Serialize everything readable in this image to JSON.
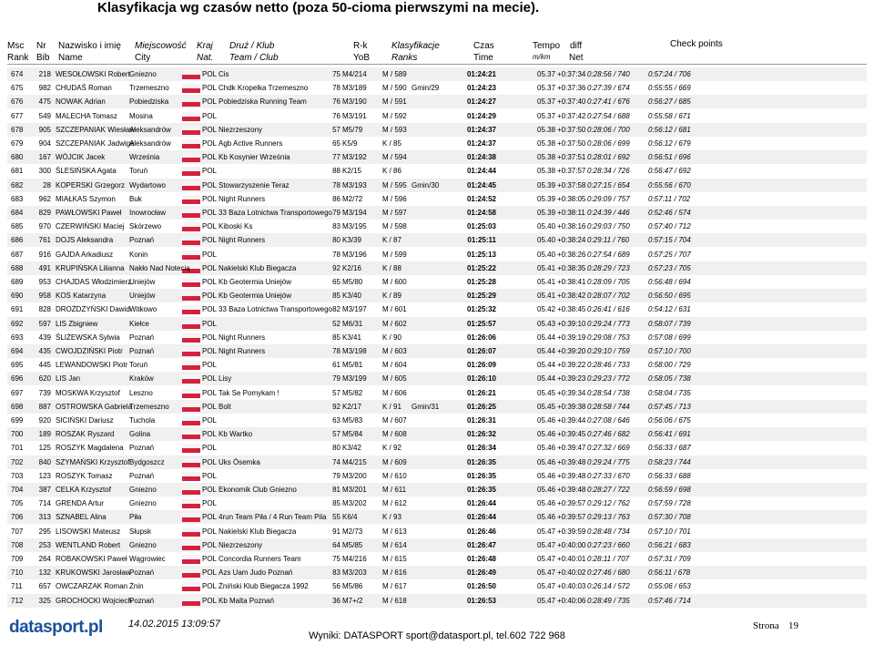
{
  "title": "Klasyfikacja wg czasów netto (poza 50-cioma pierwszymi na mecie).",
  "header": {
    "rank": [
      "Msc",
      "Rank"
    ],
    "bib": [
      "Nr",
      "Bib"
    ],
    "name": [
      "Nazwisko i imię",
      "Name"
    ],
    "city": [
      "Miejscowość",
      "City"
    ],
    "nat": [
      "Kraj",
      "Nat."
    ],
    "team": [
      "Druż / Klub",
      "Team / Club"
    ],
    "yob": [
      "R-k",
      "YoB"
    ],
    "ranks": [
      "Klasyfikacje",
      "Ranks"
    ],
    "time": [
      "Czas",
      "Time"
    ],
    "tempo": [
      "Tempo",
      "m/km"
    ],
    "diff": "diff",
    "net": "Net",
    "checkpoints": "Check points"
  },
  "table": {
    "rows": [
      {
        "rank": "674",
        "bib": "218",
        "name": "WESOŁOWSKI Robert",
        "city": "Gniezno",
        "nat": "POL",
        "team": "Cis",
        "yob": "75",
        "cat": "M4/214",
        "ranks": "M / 589",
        "time": "01:24:21",
        "tempo": "05.37",
        "diff": "+0:37:34",
        "net": "0:28:56 / 740",
        "cp": "0:57:24 / 706"
      },
      {
        "rank": "675",
        "bib": "982",
        "name": "CHUDAŚ Roman",
        "city": "Trzemeszno",
        "nat": "POL",
        "team": "Chdk Kropelka Trzemeszno",
        "yob": "78",
        "cat": "M3/189",
        "ranks": "M / 590",
        "gmin": "Gmin/29",
        "time": "01:24:23",
        "tempo": "05.37",
        "diff": "+0:37:36",
        "net": "0:27:39 / 674",
        "cp": "0:55:55 / 669"
      },
      {
        "rank": "676",
        "bib": "475",
        "name": "NOWAK Adrian",
        "city": "Pobiedziska",
        "nat": "POL",
        "team": "Pobiedziska Running Team",
        "yob": "76",
        "cat": "M3/190",
        "ranks": "M / 591",
        "time": "01:24:27",
        "tempo": "05.37",
        "diff": "+0:37:40",
        "net": "0:27:41 / 676",
        "cp": "0:56:27 / 685"
      },
      {
        "rank": "677",
        "bib": "549",
        "name": "MALECHA Tomasz",
        "city": "Mosina",
        "nat": "POL",
        "yob": "76",
        "cat": "M3/191",
        "ranks": "M / 592",
        "time": "01:24:29",
        "tempo": "05.37",
        "diff": "+0:37:42",
        "net": "0:27:54 / 688",
        "cp": "0:55:58 / 671"
      },
      {
        "rank": "678",
        "bib": "905",
        "name": "SZCZEPANIAK Wiesław",
        "city": "Aleksandrów",
        "nat": "POL",
        "team": "Niezrzeszony",
        "yob": "57",
        "cat": "M5/79",
        "ranks": "M / 593",
        "time": "01:24:37",
        "tempo": "05.38",
        "diff": "+0:37:50",
        "net": "0:28:06 / 700",
        "cp": "0:56:12 / 681"
      },
      {
        "rank": "679",
        "bib": "904",
        "name": "SZCZEPANIAK Jadwiga",
        "city": "Aleksandrów",
        "nat": "POL",
        "team": "Agb Active Runners",
        "yob": "65",
        "cat": "K5/9",
        "ranks": "K / 85",
        "time": "01:24:37",
        "tempo": "05.38",
        "diff": "+0:37:50",
        "net": "0:28:06 / 699",
        "cp": "0:56:12 / 679"
      },
      {
        "rank": "680",
        "bib": "167",
        "name": "WÓJCIK Jacek",
        "city": "Września",
        "nat": "POL",
        "team": "Kb Kosynier Września",
        "yob": "77",
        "cat": "M3/192",
        "ranks": "M / 594",
        "time": "01:24:38",
        "tempo": "05.38",
        "diff": "+0:37:51",
        "net": "0:28:01 / 692",
        "cp": "0:56:51 / 696"
      },
      {
        "rank": "681",
        "bib": "300",
        "name": "ŚLESIŃSKA Agata",
        "city": "Toruń",
        "nat": "POL",
        "yob": "88",
        "cat": "K2/15",
        "ranks": "K / 86",
        "time": "01:24:44",
        "tempo": "05.38",
        "diff": "+0:37:57",
        "net": "0:28:34 / 726",
        "cp": "0:56:47 / 692"
      },
      {
        "rank": "682",
        "bib": "28",
        "name": "KOPERSKI Grzegorz",
        "city": "Wydartowo",
        "nat": "POL",
        "team": "Stowarzyszenie Teraz",
        "yob": "78",
        "cat": "M3/193",
        "ranks": "M / 595",
        "gmin": "Gmin/30",
        "time": "01:24:45",
        "tempo": "05.39",
        "diff": "+0:37:58",
        "net": "0:27:15 / 654",
        "cp": "0:55:56 / 670"
      },
      {
        "rank": "683",
        "bib": "962",
        "name": "MIAŁKAS Szymon",
        "city": "Buk",
        "nat": "POL",
        "team": "Night Runners",
        "yob": "86",
        "cat": "M2/72",
        "ranks": "M / 596",
        "time": "01:24:52",
        "tempo": "05.39",
        "diff": "+0:38:05",
        "net": "0:29:09 / 757",
        "cp": "0:57:11 / 702"
      },
      {
        "rank": "684",
        "bib": "829",
        "name": "PAWŁOWSKI Paweł",
        "city": "Inowrocław",
        "nat": "POL",
        "team": "33 Baza Lotnictwa Transportowego",
        "yob": "79",
        "cat": "M3/194",
        "ranks": "M / 597",
        "time": "01:24:58",
        "tempo": "05.39",
        "diff": "+0:38:11",
        "net": "0:24:39 / 446",
        "cp": "0:52:46 / 574"
      },
      {
        "rank": "685",
        "bib": "970",
        "name": "CZERWIŃSKI Maciej",
        "city": "Skórzewo",
        "nat": "POL",
        "team": "Kiboski Ks",
        "yob": "83",
        "cat": "M3/195",
        "ranks": "M / 598",
        "time": "01:25:03",
        "tempo": "05.40",
        "diff": "+0:38:16",
        "net": "0:29:03 / 750",
        "cp": "0:57:40 / 712"
      },
      {
        "rank": "686",
        "bib": "761",
        "name": "DOJS Aleksandra",
        "city": "Poznań",
        "nat": "POL",
        "team": "Night Runners",
        "yob": "80",
        "cat": "K3/39",
        "ranks": "K / 87",
        "time": "01:25:11",
        "tempo": "05.40",
        "diff": "+0:38:24",
        "net": "0:29:11 / 760",
        "cp": "0:57:15 / 704"
      },
      {
        "rank": "687",
        "bib": "916",
        "name": "GAJDA Arkadiusz",
        "city": "Konin",
        "nat": "POL",
        "yob": "78",
        "cat": "M3/196",
        "ranks": "M / 599",
        "time": "01:25:13",
        "tempo": "05.40",
        "diff": "+0:38:26",
        "net": "0:27:54 / 689",
        "cp": "0:57:25 / 707"
      },
      {
        "rank": "688",
        "bib": "491",
        "name": "KRUPIŃSKA Lilianna",
        "city": "Nakło Nad Notecią",
        "nat": "POL",
        "team": "Nakielski Klub Biegacza",
        "yob": "92",
        "cat": "K2/16",
        "ranks": "K / 88",
        "time": "01:25:22",
        "tempo": "05.41",
        "diff": "+0:38:35",
        "net": "0:28:29 / 723",
        "cp": "0:57:23 / 705"
      },
      {
        "rank": "689",
        "bib": "953",
        "name": "CHAJDAS Włodzimierz",
        "city": "Uniejów",
        "nat": "POL",
        "team": "Kb Geotermia Uniejów",
        "yob": "65",
        "cat": "M5/80",
        "ranks": "M / 600",
        "time": "01:25:28",
        "tempo": "05.41",
        "diff": "+0:38:41",
        "net": "0:28:09 / 705",
        "cp": "0:56:48 / 694"
      },
      {
        "rank": "690",
        "bib": "958",
        "name": "KOS Katarzyna",
        "city": "Uniejów",
        "nat": "POL",
        "team": "Kb Geotermia Uniejów",
        "yob": "85",
        "cat": "K3/40",
        "ranks": "K / 89",
        "time": "01:25:29",
        "tempo": "05.41",
        "diff": "+0:38:42",
        "net": "0:28:07 / 702",
        "cp": "0:56:50 / 695"
      },
      {
        "rank": "691",
        "bib": "828",
        "name": "DROŻDŻYŃSKI Dawid",
        "city": "Witkowo",
        "nat": "POL",
        "team": "33 Baza Lotnictwa Transportowego",
        "yob": "82",
        "cat": "M3/197",
        "ranks": "M / 601",
        "time": "01:25:32",
        "tempo": "05.42",
        "diff": "+0:38:45",
        "net": "0:26:41 / 616",
        "cp": "0:54:12 / 631"
      },
      {
        "rank": "692",
        "bib": "597",
        "name": "LIS Zbigniew",
        "city": "Kiełce",
        "nat": "POL",
        "yob": "52",
        "cat": "M6/31",
        "ranks": "M / 602",
        "time": "01:25:57",
        "tempo": "05.43",
        "diff": "+0:39:10",
        "net": "0:29:24 / 773",
        "cp": "0:58:07 / 739"
      },
      {
        "rank": "693",
        "bib": "439",
        "name": "ŚLIŻEWSKA Sylwia",
        "city": "Poznań",
        "nat": "POL",
        "team": "Night Runners",
        "yob": "85",
        "cat": "K3/41",
        "ranks": "K / 90",
        "time": "01:26:06",
        "tempo": "05.44",
        "diff": "+0:39:19",
        "net": "0:29:08 / 753",
        "cp": "0:57:08 / 699"
      },
      {
        "rank": "694",
        "bib": "435",
        "name": "CWOJDZIŃSKI Piotr",
        "city": "Poznań",
        "nat": "POL",
        "team": "Night Runners",
        "yob": "78",
        "cat": "M3/198",
        "ranks": "M / 603",
        "time": "01:26:07",
        "tempo": "05.44",
        "diff": "+0:39:20",
        "net": "0:29:10 / 759",
        "cp": "0:57:10 / 700"
      },
      {
        "rank": "695",
        "bib": "445",
        "name": "LEWANDOWSKI Piotr",
        "city": "Toruń",
        "nat": "POL",
        "yob": "61",
        "cat": "M5/81",
        "ranks": "M / 604",
        "time": "01:26:09",
        "tempo": "05.44",
        "diff": "+0:39:22",
        "net": "0:28:46 / 733",
        "cp": "0:58:00 / 729"
      },
      {
        "rank": "696",
        "bib": "620",
        "name": "LIS Jan",
        "city": "Kraków",
        "nat": "POL",
        "team": "Lisy",
        "yob": "79",
        "cat": "M3/199",
        "ranks": "M / 605",
        "time": "01:26:10",
        "tempo": "05.44",
        "diff": "+0:39:23",
        "net": "0:29:23 / 772",
        "cp": "0:58:05 / 738"
      },
      {
        "rank": "697",
        "bib": "739",
        "name": "MOSKWA Krzysztof",
        "city": "Leszno",
        "nat": "POL",
        "team": "Tak Se Pomykam !",
        "yob": "57",
        "cat": "M5/82",
        "ranks": "M / 606",
        "time": "01:26:21",
        "tempo": "05.45",
        "diff": "+0:39:34",
        "net": "0:28:54 / 738",
        "cp": "0:58:04 / 735"
      },
      {
        "rank": "698",
        "bib": "887",
        "name": "OSTROWSKA Gabriela",
        "city": "Trzemeszno",
        "nat": "POL",
        "team": "Bolt",
        "yob": "92",
        "cat": "K2/17",
        "ranks": "K / 91",
        "gmin": "Gmin/31",
        "time": "01:26:25",
        "tempo": "05.45",
        "diff": "+0:39:38",
        "net": "0:28:58 / 744",
        "cp": "0:57:45 / 713"
      },
      {
        "rank": "699",
        "bib": "920",
        "name": "SICIŃSKI Dariusz",
        "city": "Tuchola",
        "nat": "POL",
        "yob": "63",
        "cat": "M5/83",
        "ranks": "M / 607",
        "time": "01:26:31",
        "tempo": "05.46",
        "diff": "+0:39:44",
        "net": "0:27:08 / 646",
        "cp": "0:56:06 / 675"
      },
      {
        "rank": "700",
        "bib": "189",
        "name": "ROSZAK Ryszard",
        "city": "Golina",
        "nat": "POL",
        "team": "Kb Wartko",
        "yob": "57",
        "cat": "M5/84",
        "ranks": "M / 608",
        "time": "01:26:32",
        "tempo": "05.46",
        "diff": "+0:39:45",
        "net": "0:27:46 / 682",
        "cp": "0:56:41 / 691"
      },
      {
        "rank": "701",
        "bib": "125",
        "name": "ROSZYK Magdalena",
        "city": "Poznań",
        "nat": "POL",
        "yob": "80",
        "cat": "K3/42",
        "ranks": "K / 92",
        "time": "01:26:34",
        "tempo": "05.46",
        "diff": "+0:39:47",
        "net": "0:27:32 / 669",
        "cp": "0:56:33 / 687"
      },
      {
        "rank": "702",
        "bib": "840",
        "name": "SZYMAŃSKI Krzysztof",
        "city": "Bydgoszcz",
        "nat": "POL",
        "team": "Uks Ósemka",
        "yob": "74",
        "cat": "M4/215",
        "ranks": "M / 609",
        "time": "01:26:35",
        "tempo": "05.46",
        "diff": "+0:39:48",
        "net": "0:29:24 / 775",
        "cp": "0:58:23 / 744"
      },
      {
        "rank": "703",
        "bib": "123",
        "name": "ROSZYK Tomasz",
        "city": "Poznań",
        "nat": "POL",
        "yob": "79",
        "cat": "M3/200",
        "ranks": "M / 610",
        "time": "01:26:35",
        "tempo": "05.46",
        "diff": "+0:39:48",
        "net": "0:27:33 / 670",
        "cp": "0:56:33 / 688"
      },
      {
        "rank": "704",
        "bib": "387",
        "name": "CELKA Krzysztof",
        "city": "Gniezno",
        "nat": "POL",
        "team": "Ekonomik Club Gniezno",
        "yob": "81",
        "cat": "M3/201",
        "ranks": "M / 611",
        "time": "01:26:35",
        "tempo": "05.46",
        "diff": "+0:39:48",
        "net": "0:28:27 / 722",
        "cp": "0:56:59 / 698"
      },
      {
        "rank": "705",
        "bib": "714",
        "name": "GRENDA Artur",
        "city": "Gniezno",
        "nat": "POL",
        "yob": "85",
        "cat": "M3/202",
        "ranks": "M / 612",
        "time": "01:26:44",
        "tempo": "05.46",
        "diff": "+0:39:57",
        "net": "0:29:12 / 762",
        "cp": "0:57:59 / 728"
      },
      {
        "rank": "706",
        "bib": "313",
        "name": "SZNABEL Alina",
        "city": "Piła",
        "nat": "POL",
        "team": "4run Team Piła / 4 Run Team Pila",
        "yob": "55",
        "cat": "K6/4",
        "ranks": "K / 93",
        "time": "01:26:44",
        "tempo": "05.46",
        "diff": "+0:39:57",
        "net": "0:29:13 / 763",
        "cp": "0:57:30 / 708"
      },
      {
        "rank": "707",
        "bib": "295",
        "name": "LISOWSKI Mateusz",
        "city": "Słupsk",
        "nat": "POL",
        "team": "Nakielski Klub Biegacza",
        "yob": "91",
        "cat": "M2/73",
        "ranks": "M / 613",
        "time": "01:26:46",
        "tempo": "05.47",
        "diff": "+0:39:59",
        "net": "0:28:48 / 734",
        "cp": "0:57:10 / 701"
      },
      {
        "rank": "708",
        "bib": "253",
        "name": "WENTLAND Robert",
        "city": "Gniezno",
        "nat": "POL",
        "team": "Niezrzeszony",
        "yob": "64",
        "cat": "M5/85",
        "ranks": "M / 614",
        "time": "01:26:47",
        "tempo": "05.47",
        "diff": "+0:40:00",
        "net": "0:27:23 / 660",
        "cp": "0:56:21 / 683"
      },
      {
        "rank": "709",
        "bib": "264",
        "name": "ROBAKOWSKI Paweł",
        "city": "Wągrowiec",
        "nat": "POL",
        "team": "Concordia Runners Team",
        "yob": "75",
        "cat": "M4/216",
        "ranks": "M / 615",
        "time": "01:26:48",
        "tempo": "05.47",
        "diff": "+0:40:01",
        "net": "0:28:11 / 707",
        "cp": "0:57:31 / 709"
      },
      {
        "rank": "710",
        "bib": "132",
        "name": "KRUKOWSKI Jarosław",
        "city": "Poznań",
        "nat": "POL",
        "team": "Azs Uam Judo Poznań",
        "yob": "83",
        "cat": "M3/203",
        "ranks": "M / 616",
        "time": "01:26:49",
        "tempo": "05.47",
        "diff": "+0:40:02",
        "net": "0:27:46 / 680",
        "cp": "0:56:11 / 678"
      },
      {
        "rank": "711",
        "bib": "657",
        "name": "OWCZARZAK Roman",
        "city": "Żnin",
        "nat": "POL",
        "team": "Żniński Klub Biegacza 1992",
        "yob": "56",
        "cat": "M5/86",
        "ranks": "M / 617",
        "time": "01:26:50",
        "tempo": "05.47",
        "diff": "+0:40:03",
        "net": "0:26:14 / 572",
        "cp": "0:55:06 / 653"
      },
      {
        "rank": "712",
        "bib": "325",
        "name": "GROCHOCKI Wojciech",
        "city": "Poznań",
        "nat": "POL",
        "team": "Kb Malta Poznań",
        "yob": "36",
        "cat": "M7+/2",
        "ranks": "M / 618",
        "time": "01:26:53",
        "tempo": "05.47",
        "diff": "+0:40:06",
        "net": "0:28:49 / 735",
        "cp": "0:57:46 / 714"
      }
    ]
  },
  "footer": {
    "logo": "datasport.pl",
    "date": "14.02.2015 13:09:57",
    "results": "Wyniki: DATASPORT sport@datasport.pl, tel.602 722 968",
    "page_label": "Strona",
    "page_number": "19"
  }
}
